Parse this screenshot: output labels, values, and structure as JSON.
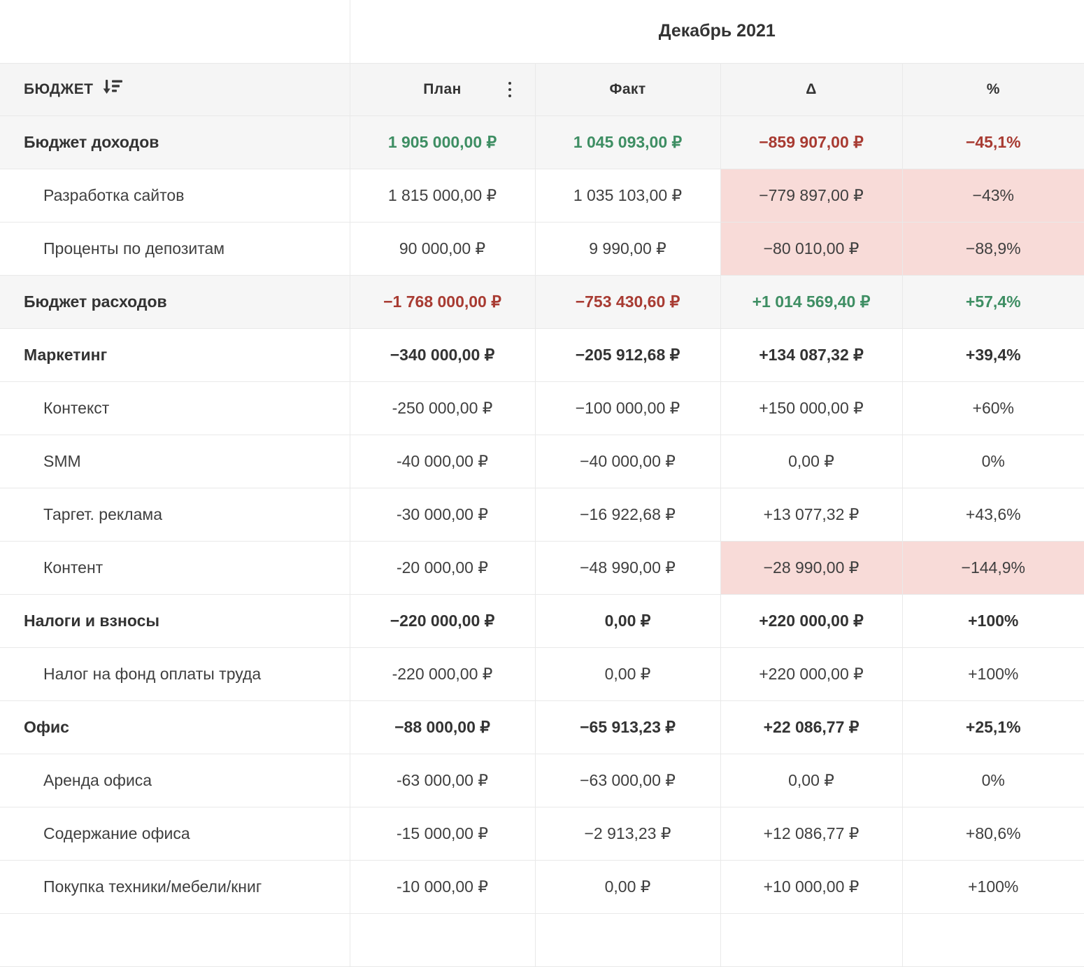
{
  "period": {
    "title": "Декабрь 2021"
  },
  "header": {
    "budget": "БЮДЖЕТ",
    "plan": "План",
    "fact": "Факт",
    "delta": "Δ",
    "percent": "%"
  },
  "icons": {
    "sort": "sort-descending-icon",
    "menu": "kebab-menu-icon"
  },
  "theme": {
    "green": "#3e8e63",
    "red": "#a83b32",
    "pink_bg": "#f8dbd8",
    "header_bg": "#f5f5f5",
    "subtotal_bg": "#f6f6f6",
    "border": "#e9e9e9",
    "text": "#3f3f3f",
    "text_strong": "#333333"
  },
  "rows": [
    {
      "label": "Бюджет доходов",
      "child": false,
      "bold": true,
      "highlight": true,
      "cells": {
        "plan": {
          "text": "1 905 000,00 ₽",
          "tone": "green"
        },
        "fact": {
          "text": "1 045 093,00 ₽",
          "tone": "green"
        },
        "delta": {
          "text": "−859 907,00 ₽",
          "tone": "red"
        },
        "percent": {
          "text": "−45,1%",
          "tone": "red"
        }
      }
    },
    {
      "label": "Разработка сайтов",
      "child": true,
      "bold": false,
      "highlight": false,
      "cells": {
        "plan": {
          "text": "1 815 000,00 ₽"
        },
        "fact": {
          "text": "1 035 103,00 ₽"
        },
        "delta": {
          "text": "−779 897,00 ₽",
          "bg": "pink"
        },
        "percent": {
          "text": "−43%",
          "bg": "pink"
        }
      }
    },
    {
      "label": "Проценты по депозитам",
      "child": true,
      "bold": false,
      "highlight": false,
      "cells": {
        "plan": {
          "text": "90 000,00 ₽"
        },
        "fact": {
          "text": "9 990,00 ₽"
        },
        "delta": {
          "text": "−80 010,00 ₽",
          "bg": "pink"
        },
        "percent": {
          "text": "−88,9%",
          "bg": "pink"
        }
      }
    },
    {
      "label": "Бюджет расходов",
      "child": false,
      "bold": true,
      "highlight": true,
      "cells": {
        "plan": {
          "text": "−1 768 000,00 ₽",
          "tone": "red"
        },
        "fact": {
          "text": "−753 430,60 ₽",
          "tone": "red"
        },
        "delta": {
          "text": "+1 014 569,40 ₽",
          "tone": "green"
        },
        "percent": {
          "text": "+57,4%",
          "tone": "green"
        }
      }
    },
    {
      "label": "Маркетинг",
      "child": false,
      "bold": true,
      "highlight": false,
      "cells": {
        "plan": {
          "text": "−340 000,00 ₽"
        },
        "fact": {
          "text": "−205 912,68 ₽"
        },
        "delta": {
          "text": "+134 087,32 ₽"
        },
        "percent": {
          "text": "+39,4%"
        }
      }
    },
    {
      "label": "Контекст",
      "child": true,
      "bold": false,
      "highlight": false,
      "cells": {
        "plan": {
          "text": "-250 000,00 ₽"
        },
        "fact": {
          "text": "−100 000,00 ₽"
        },
        "delta": {
          "text": "+150 000,00 ₽"
        },
        "percent": {
          "text": "+60%"
        }
      }
    },
    {
      "label": "SMM",
      "child": true,
      "bold": false,
      "highlight": false,
      "cells": {
        "plan": {
          "text": "-40 000,00 ₽"
        },
        "fact": {
          "text": "−40 000,00 ₽"
        },
        "delta": {
          "text": "0,00 ₽"
        },
        "percent": {
          "text": "0%"
        }
      }
    },
    {
      "label": "Таргет. реклама",
      "child": true,
      "bold": false,
      "highlight": false,
      "cells": {
        "plan": {
          "text": "-30 000,00 ₽"
        },
        "fact": {
          "text": "−16 922,68 ₽"
        },
        "delta": {
          "text": "+13 077,32 ₽"
        },
        "percent": {
          "text": "+43,6%"
        }
      }
    },
    {
      "label": "Контент",
      "child": true,
      "bold": false,
      "highlight": false,
      "cells": {
        "plan": {
          "text": "-20 000,00 ₽"
        },
        "fact": {
          "text": "−48 990,00 ₽"
        },
        "delta": {
          "text": "−28 990,00 ₽",
          "bg": "pink"
        },
        "percent": {
          "text": "−144,9%",
          "bg": "pink"
        }
      }
    },
    {
      "label": "Налоги и взносы",
      "child": false,
      "bold": true,
      "highlight": false,
      "cells": {
        "plan": {
          "text": "−220 000,00 ₽"
        },
        "fact": {
          "text": "0,00 ₽"
        },
        "delta": {
          "text": "+220 000,00 ₽"
        },
        "percent": {
          "text": "+100%"
        }
      }
    },
    {
      "label": "Налог на фонд оплаты труда",
      "child": true,
      "bold": false,
      "highlight": false,
      "cells": {
        "plan": {
          "text": "-220 000,00 ₽"
        },
        "fact": {
          "text": "0,00 ₽"
        },
        "delta": {
          "text": "+220 000,00 ₽"
        },
        "percent": {
          "text": "+100%"
        }
      }
    },
    {
      "label": "Офис",
      "child": false,
      "bold": true,
      "highlight": false,
      "cells": {
        "plan": {
          "text": "−88 000,00 ₽"
        },
        "fact": {
          "text": "−65 913,23 ₽"
        },
        "delta": {
          "text": "+22 086,77 ₽"
        },
        "percent": {
          "text": "+25,1%"
        }
      }
    },
    {
      "label": "Аренда офиса",
      "child": true,
      "bold": false,
      "highlight": false,
      "cells": {
        "plan": {
          "text": "-63 000,00 ₽"
        },
        "fact": {
          "text": "−63 000,00 ₽"
        },
        "delta": {
          "text": "0,00 ₽"
        },
        "percent": {
          "text": "0%"
        }
      }
    },
    {
      "label": "Содержание офиса",
      "child": true,
      "bold": false,
      "highlight": false,
      "cells": {
        "plan": {
          "text": "-15 000,00 ₽"
        },
        "fact": {
          "text": "−2 913,23 ₽"
        },
        "delta": {
          "text": "+12 086,77 ₽"
        },
        "percent": {
          "text": "+80,6%"
        }
      }
    },
    {
      "label": "Покупка техники/мебели/книг",
      "child": true,
      "bold": false,
      "highlight": false,
      "cells": {
        "plan": {
          "text": "-10 000,00 ₽"
        },
        "fact": {
          "text": "0,00 ₽"
        },
        "delta": {
          "text": "+10 000,00 ₽"
        },
        "percent": {
          "text": "+100%"
        }
      }
    }
  ]
}
